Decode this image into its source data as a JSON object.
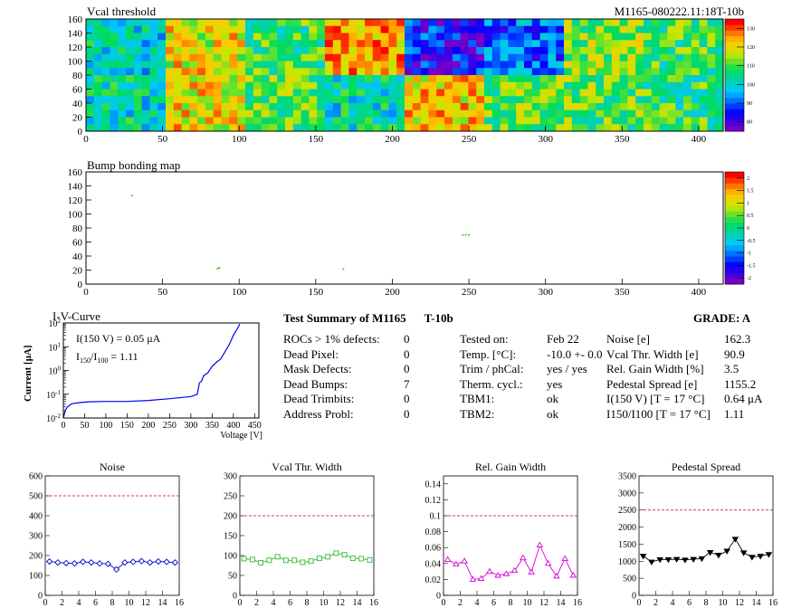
{
  "vcal_map": {
    "title": "Vcal threshold",
    "module_label": "M1165-080222.11:18T-10b",
    "x_ticks": [
      "0",
      "50",
      "100",
      "150",
      "200",
      "250",
      "300",
      "350",
      "400"
    ],
    "y_ticks": [
      "0",
      "20",
      "40",
      "60",
      "80",
      "100",
      "120",
      "140",
      "160"
    ],
    "z_ticks": [
      "80",
      "90",
      "100",
      "110",
      "120",
      "130"
    ],
    "roc_levels": [
      [
        0.42,
        0.75,
        0.55,
        0.85,
        0.15,
        0.25,
        0.65,
        0.55
      ],
      [
        0.45,
        0.78,
        0.6,
        0.45,
        0.8,
        0.6,
        0.6,
        0.55
      ]
    ]
  },
  "bump_map": {
    "title": "Bump bonding map",
    "x_ticks": [
      "0",
      "50",
      "100",
      "150",
      "200",
      "250",
      "300",
      "350",
      "400"
    ],
    "y_ticks": [
      "0",
      "20",
      "40",
      "60",
      "80",
      "100",
      "120",
      "140",
      "160"
    ],
    "z_ticks": [
      "-2",
      "-1.5",
      "-1",
      "-0.5",
      "0",
      "0.5",
      "1",
      "1.5",
      "2"
    ],
    "dead_bumps": [
      [
        30,
        126
      ],
      [
        86,
        22
      ],
      [
        87,
        23
      ],
      [
        168,
        21
      ],
      [
        246,
        70
      ],
      [
        248,
        70
      ],
      [
        250,
        70
      ]
    ]
  },
  "iv_curve": {
    "title": "I-V-Curve",
    "ylabel": "Current [μA]",
    "xlabel": "Voltage [V]",
    "x_ticks": [
      "0",
      "50",
      "100",
      "150",
      "200",
      "250",
      "300",
      "350",
      "400",
      "450"
    ],
    "annotation_line1": "I(150 V) = 0.05 μA",
    "annotation_line2_prefix": "I",
    "annotation_line2_sub1": "150",
    "annotation_line2_mid": "/I",
    "annotation_line2_sub2": "100",
    "annotation_line2_suffix": " =  1.11"
  },
  "summary": {
    "heading": "Test Summary of M1165",
    "heading_tag": "T-10b",
    "grade": "GRADE:  A",
    "left_rows": [
      {
        "label": "ROCs > 1% defects:",
        "value": "0"
      },
      {
        "label": "Dead Pixel:",
        "value": "0"
      },
      {
        "label": "Mask Defects:",
        "value": "0"
      },
      {
        "label": "Dead Bumps:",
        "value": "7"
      },
      {
        "label": "Dead Trimbits:",
        "value": "0"
      },
      {
        "label": "Address Probl:",
        "value": "0"
      }
    ],
    "mid_rows": [
      {
        "label": "Tested on:",
        "value": "Feb 22"
      },
      {
        "label": "Temp. [°C]:",
        "value": "-10.0 +- 0.0"
      },
      {
        "label": "Trim / phCal:",
        "value": "yes / yes"
      },
      {
        "label": "Therm. cycl.:",
        "value": "yes"
      },
      {
        "label": "TBM1:",
        "value": "ok"
      },
      {
        "label": "TBM2:",
        "value": "ok"
      }
    ],
    "right_rows": [
      {
        "label": "Noise [e]",
        "value": "162.3"
      },
      {
        "label": "Vcal Thr. Width [e]",
        "value": "90.9"
      },
      {
        "label": "Rel. Gain Width [%]",
        "value": "3.5"
      },
      {
        "label": "Pedestal Spread [e]",
        "value": "1155.2"
      },
      {
        "label": "I(150 V) [T = 17 °C]",
        "value": "0.64 μA"
      },
      {
        "label": "I150/I100 [T = 17 °C]",
        "value": "1.11"
      }
    ]
  },
  "chart_data": [
    {
      "type": "heatmap",
      "title": "Vcal threshold",
      "xlim": [
        0,
        416
      ],
      "ylim": [
        0,
        160
      ],
      "zlim": [
        80,
        135
      ],
      "x_ticks": [
        0,
        50,
        100,
        150,
        200,
        250,
        300,
        350,
        400
      ],
      "y_ticks": [
        0,
        20,
        40,
        60,
        80,
        100,
        120,
        140,
        160
      ]
    },
    {
      "type": "scatter",
      "title": "Bump bonding map",
      "xlim": [
        0,
        416
      ],
      "ylim": [
        0,
        160
      ],
      "zlim": [
        -2,
        2
      ],
      "x": [
        30,
        86,
        87,
        168,
        246,
        248,
        250
      ],
      "y": [
        126,
        22,
        23,
        21,
        70,
        70,
        70
      ]
    },
    {
      "type": "line",
      "title": "I-V-Curve",
      "xlabel": "Voltage [V]",
      "ylabel": "Current [μA]",
      "xlim": [
        0,
        460
      ],
      "ylim": [
        0.01,
        100
      ],
      "yscale": "log",
      "x": [
        0,
        5,
        10,
        20,
        40,
        60,
        100,
        150,
        200,
        250,
        300,
        315,
        320,
        325,
        330,
        340,
        350,
        360,
        370,
        380,
        390,
        400,
        410,
        415
      ],
      "y": [
        0.01,
        0.022,
        0.03,
        0.04,
        0.045,
        0.048,
        0.05,
        0.05,
        0.055,
        0.065,
        0.08,
        0.1,
        0.3,
        0.35,
        0.6,
        0.8,
        1.5,
        2.2,
        3,
        6,
        12,
        30,
        60,
        90
      ]
    },
    {
      "type": "line",
      "title": "Noise",
      "xlim": [
        0,
        16
      ],
      "ylim": [
        0,
        600
      ],
      "cut": 500,
      "color": "#0000cc",
      "x_ticks": [
        0,
        2,
        4,
        6,
        8,
        10,
        12,
        14,
        16
      ],
      "y_ticks": [
        0,
        100,
        200,
        300,
        400,
        500,
        600
      ],
      "x": [
        0.5,
        1.5,
        2.5,
        3.5,
        4.5,
        5.5,
        6.5,
        7.5,
        8.5,
        9.5,
        10.5,
        11.5,
        12.5,
        13.5,
        14.5,
        15.5
      ],
      "y": [
        170,
        165,
        162,
        160,
        168,
        165,
        160,
        158,
        130,
        165,
        168,
        172,
        165,
        170,
        168,
        165
      ]
    },
    {
      "type": "line",
      "title": "Vcal Thr. Width",
      "xlim": [
        0,
        16
      ],
      "ylim": [
        0,
        300
      ],
      "cut": 200,
      "color": "#33bb33",
      "x_ticks": [
        0,
        2,
        4,
        6,
        8,
        10,
        12,
        14,
        16
      ],
      "y_ticks": [
        0,
        50,
        100,
        150,
        200,
        250,
        300
      ],
      "x": [
        0.5,
        1.5,
        2.5,
        3.5,
        4.5,
        5.5,
        6.5,
        7.5,
        8.5,
        9.5,
        10.5,
        11.5,
        12.5,
        13.5,
        14.5,
        15.5
      ],
      "y": [
        92,
        90,
        82,
        88,
        97,
        88,
        88,
        83,
        86,
        93,
        97,
        106,
        102,
        93,
        92,
        89
      ]
    },
    {
      "type": "line",
      "title": "Rel. Gain Width",
      "xlim": [
        0,
        16
      ],
      "ylim": [
        0,
        0.15
      ],
      "cut": 0.1,
      "color": "#dd00dd",
      "x_ticks": [
        0,
        2,
        4,
        6,
        8,
        10,
        12,
        14,
        16
      ],
      "y_ticks": [
        0,
        0.02,
        0.04,
        0.06,
        0.08,
        0.1,
        0.12,
        0.14
      ],
      "x": [
        0.5,
        1.5,
        2.5,
        3.5,
        4.5,
        5.5,
        6.5,
        7.5,
        8.5,
        9.5,
        10.5,
        11.5,
        12.5,
        13.5,
        14.5,
        15.5
      ],
      "y": [
        0.045,
        0.039,
        0.043,
        0.02,
        0.021,
        0.03,
        0.025,
        0.027,
        0.031,
        0.047,
        0.029,
        0.063,
        0.04,
        0.024,
        0.046,
        0.025
      ]
    },
    {
      "type": "line",
      "title": "Pedestal Spread",
      "xlim": [
        0,
        16
      ],
      "ylim": [
        0,
        3500
      ],
      "cut": 2500,
      "color": "#000000",
      "x_ticks": [
        0,
        2,
        4,
        6,
        8,
        10,
        12,
        14,
        16
      ],
      "y_ticks": [
        0,
        500,
        1000,
        1500,
        2000,
        2500,
        3000,
        3500
      ],
      "x": [
        0.5,
        1.5,
        2.5,
        3.5,
        4.5,
        5.5,
        6.5,
        7.5,
        8.5,
        9.5,
        10.5,
        11.5,
        12.5,
        13.5,
        14.5,
        15.5
      ],
      "y": [
        1150,
        980,
        1050,
        1050,
        1060,
        1040,
        1060,
        1080,
        1260,
        1180,
        1300,
        1650,
        1250,
        1120,
        1150,
        1200
      ]
    }
  ]
}
